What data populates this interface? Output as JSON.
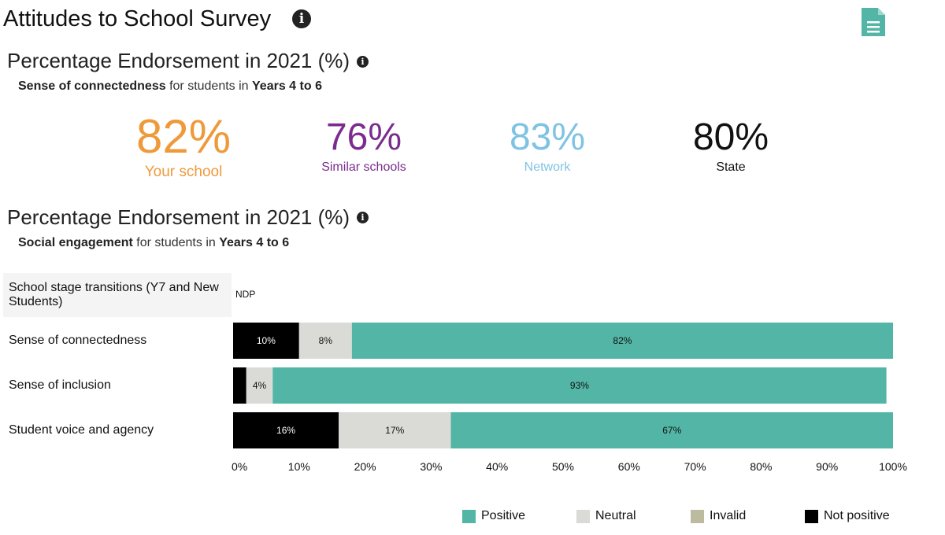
{
  "header": {
    "title": "Attitudes to School Survey",
    "info_icon": "info-icon",
    "doc_icon": "document-icon"
  },
  "section1": {
    "title": "Percentage Endorsement in 2021 (%)",
    "subtitle_metric": "Sense of connectedness",
    "subtitle_mid": " for students in ",
    "subtitle_group": "Years 4 to 6",
    "stats": [
      {
        "value": "82%",
        "label": "Your school",
        "color": "#ef9a3a"
      },
      {
        "value": "76%",
        "label": "Similar schools",
        "color": "#7b2d8e"
      },
      {
        "value": "83%",
        "label": "Network",
        "color": "#7fc3e3"
      },
      {
        "value": "80%",
        "label": "State",
        "color": "#111111"
      }
    ]
  },
  "section2": {
    "title": "Percentage Endorsement in 2021 (%)",
    "subtitle_metric": "Social engagement",
    "subtitle_mid": " for students in ",
    "subtitle_group": "Years 4 to 6"
  },
  "chart_data": {
    "type": "bar",
    "orientation": "horizontal",
    "stacked": true,
    "categories": [
      "School stage transitions (Y7 and New Students)",
      "Sense of connectedness",
      "Sense of inclusion",
      "Student voice and agency"
    ],
    "no_data_label": "NDP",
    "series": [
      {
        "name": "Not positive",
        "color": "#000000",
        "values": [
          null,
          10,
          2,
          16
        ],
        "labels": [
          "",
          "10%",
          "",
          "16%"
        ],
        "label_color": "#ffffff"
      },
      {
        "name": "Invalid",
        "color": "#bdbb9f",
        "values": [
          null,
          0,
          0,
          0
        ],
        "labels": [
          "",
          "",
          "",
          ""
        ],
        "label_color": "#111111"
      },
      {
        "name": "Neutral",
        "color": "#dadad6",
        "values": [
          null,
          8,
          4,
          17
        ],
        "labels": [
          "",
          "8%",
          "4%",
          "17%"
        ],
        "label_color": "#111111"
      },
      {
        "name": "Positive",
        "color": "#52b5a5",
        "values": [
          null,
          82,
          93,
          67
        ],
        "labels": [
          "",
          "82%",
          "93%",
          "67%"
        ],
        "label_color": "#111111"
      }
    ],
    "xlim": [
      0,
      100
    ],
    "x_ticks": [
      "0%",
      "10%",
      "20%",
      "30%",
      "40%",
      "50%",
      "60%",
      "70%",
      "80%",
      "90%",
      "100%"
    ],
    "legend": [
      {
        "name": "Positive",
        "color": "#52b5a5"
      },
      {
        "name": "Neutral",
        "color": "#dadad6"
      },
      {
        "name": "Invalid",
        "color": "#bdbb9f"
      },
      {
        "name": "Not positive",
        "color": "#000000"
      }
    ],
    "legend_position": "bottom-right",
    "grid": false
  }
}
